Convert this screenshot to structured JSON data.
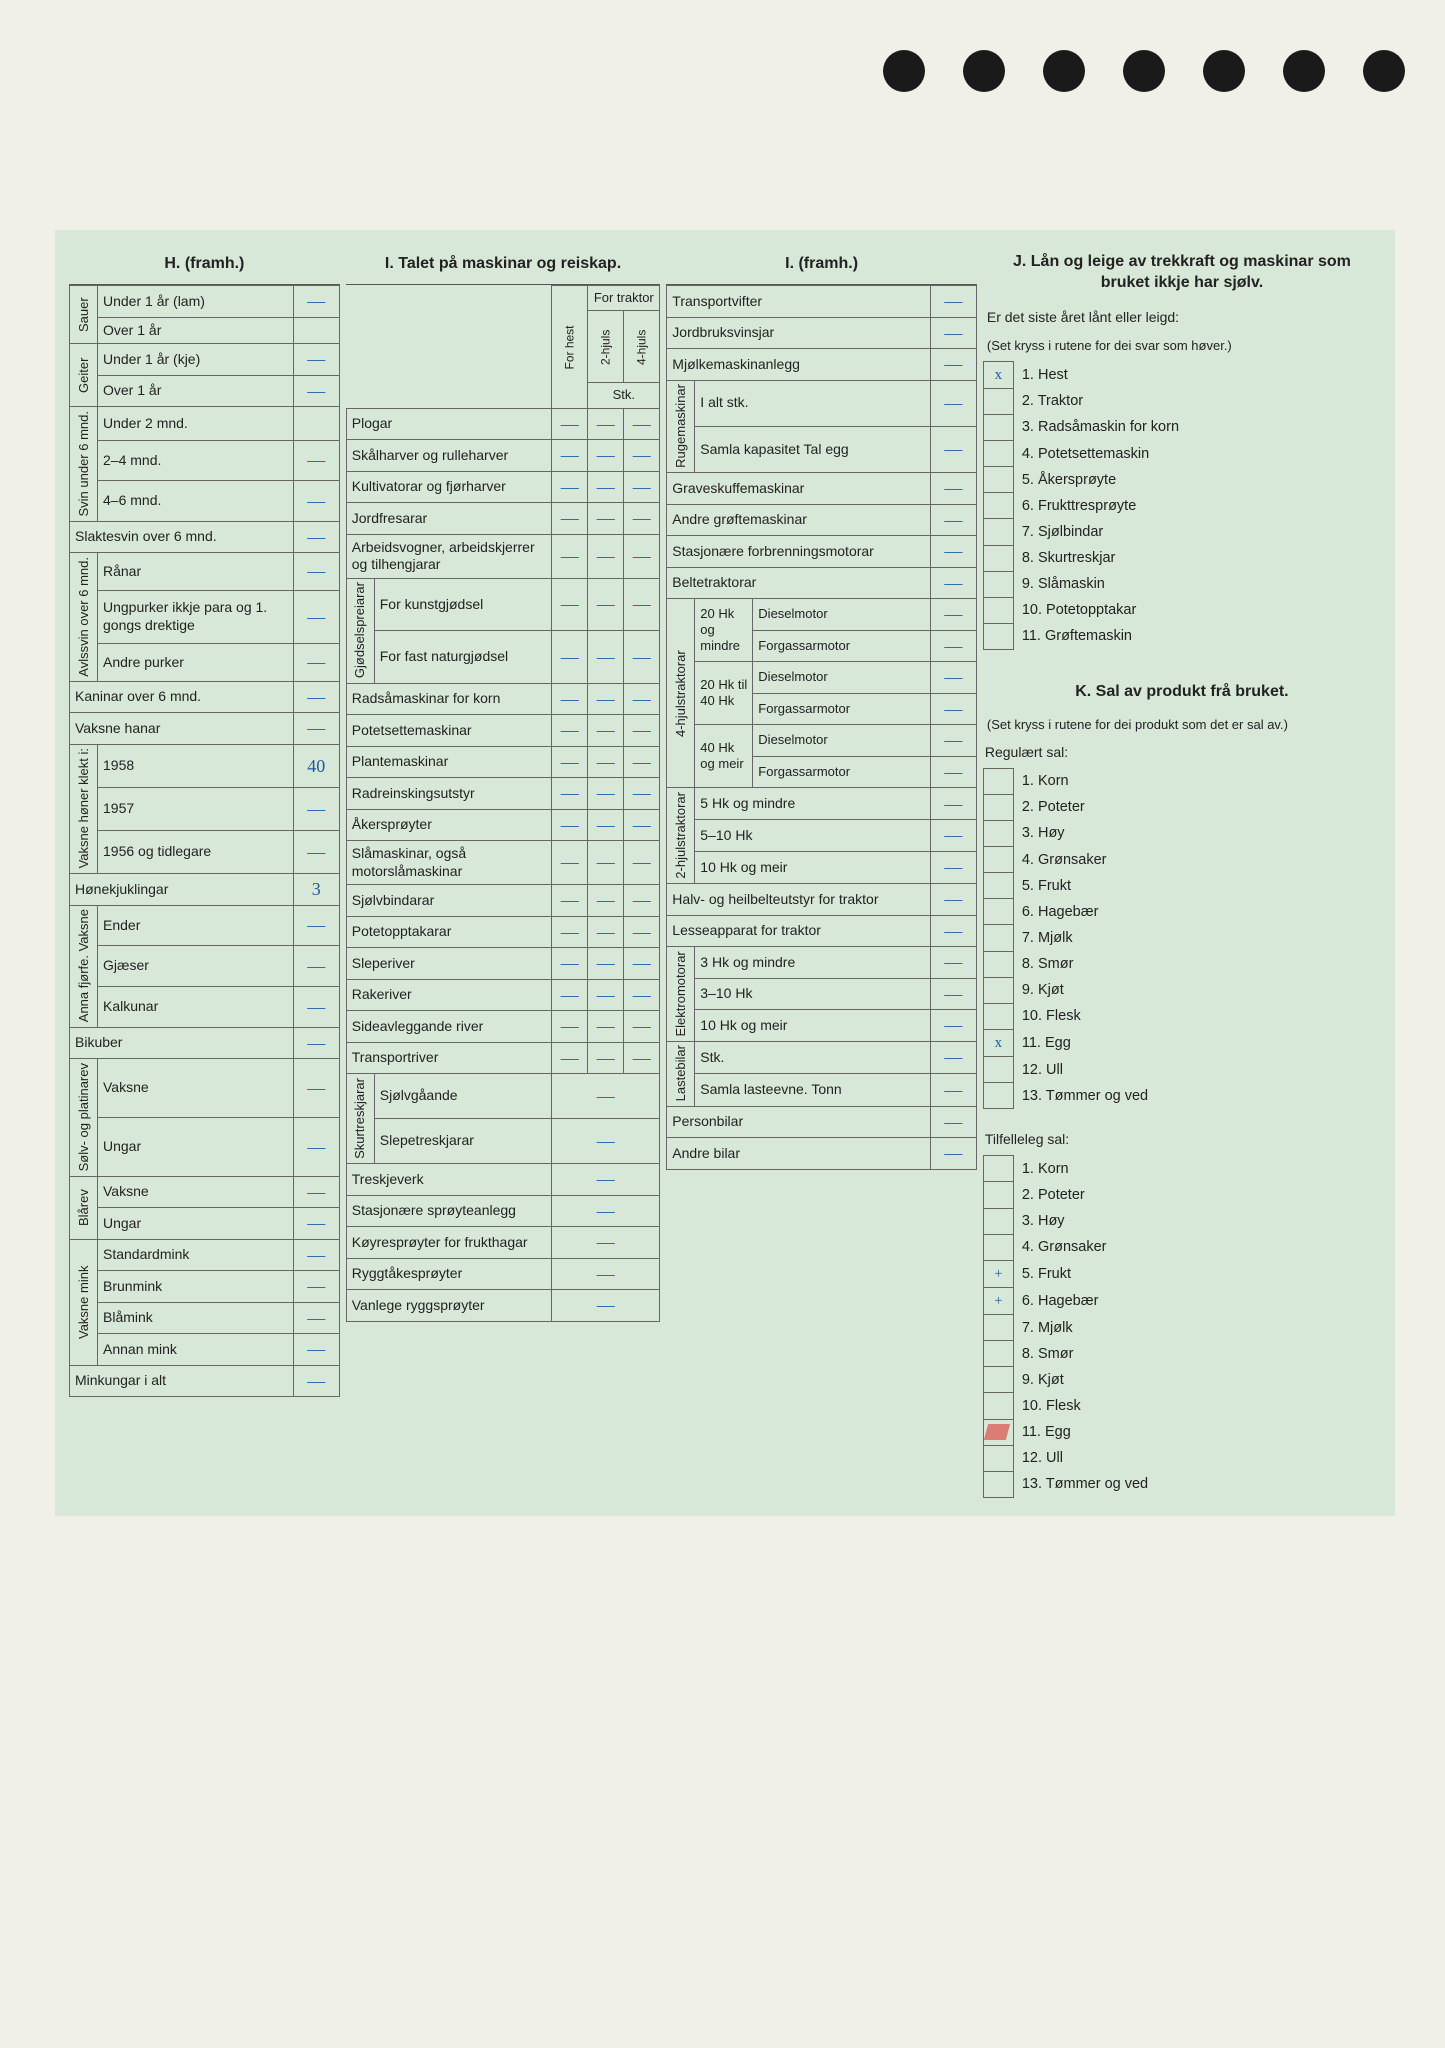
{
  "background_color": "#d8e8d8",
  "ink_color": "#1a5aa8",
  "text_color": "#222222",
  "border_color": "#666666",
  "red_mark_color": "#d33333",
  "titles": {
    "h": "H. (framh.)",
    "i1": "I. Talet på maskinar og reiskap.",
    "i2": "I. (framh.)",
    "j": "J. Lån og leige av trekkraft og maskinar som bruket ikkje har sjølv.",
    "j_sub": "Er det siste året lånt eller leigd:",
    "j_note": "(Set kryss i rutene for dei svar som høver.)",
    "k": "K. Sal av produkt frå bruket.",
    "k_note": "(Set kryss i rutene for dei produkt som det er sal av.)",
    "k_reg": "Regulært sal:",
    "k_tilf": "Tilfelleleg sal:"
  },
  "traktor_head": {
    "for_traktor": "For traktor",
    "for_hest": "For hest",
    "hjuls2": "2-hjuls",
    "hjuls4": "4-hjuls",
    "stk": "Stk."
  },
  "h_rows": [
    {
      "group": "Sauer",
      "label": "Under 1 år (lam)",
      "val": "—"
    },
    {
      "label": "Over 1 år",
      "val": ""
    },
    {
      "group": "Geiter",
      "label": "Under 1 år (kje)",
      "val": "—"
    },
    {
      "label": "Over 1 år",
      "val": "—"
    },
    {
      "group": "Svin under 6 mnd.",
      "label": "Under 2 mnd.",
      "val": ""
    },
    {
      "label": "2–4 mnd.",
      "val": "—"
    },
    {
      "label": "4–6 mnd.",
      "val": "—"
    },
    {
      "span": true,
      "label": "Slaktesvin over 6 mnd.",
      "val": "—"
    },
    {
      "group": "Avlssvin over 6 mnd.",
      "label": "Rånar",
      "val": "—"
    },
    {
      "label": "Ungpurker ikkje para og 1. gongs drektige",
      "val": "—"
    },
    {
      "label": "Andre purker",
      "val": "—"
    },
    {
      "span": true,
      "label": "Kaninar over 6 mnd.",
      "val": "—"
    },
    {
      "span": true,
      "label": "Vaksne hanar",
      "val": "—"
    },
    {
      "group": "Vaksne høner klekt i:",
      "label": "1958",
      "val": "40"
    },
    {
      "label": "1957",
      "val": "—"
    },
    {
      "label": "1956 og tidlegare",
      "val": "—"
    },
    {
      "span": true,
      "label": "Hønekjuklingar",
      "val": "3"
    },
    {
      "group": "Anna fjørfe. Vaksne",
      "label": "Ender",
      "val": "—"
    },
    {
      "label": "Gjæser",
      "val": "—"
    },
    {
      "label": "Kalkunar",
      "val": "—"
    },
    {
      "span": true,
      "label": "Bikuber",
      "val": "—"
    },
    {
      "group": "Sølv- og platinarev",
      "label": "Vaksne",
      "val": "—"
    },
    {
      "label": "Ungar",
      "val": "—"
    },
    {
      "group": "Blårev",
      "label": "Vaksne",
      "val": "—"
    },
    {
      "label": "Ungar",
      "val": "—"
    },
    {
      "group": "Vaksne mink",
      "label": "Standardmink",
      "val": "—"
    },
    {
      "label": "Brunmink",
      "val": "—"
    },
    {
      "label": "Blåmink",
      "val": "—"
    },
    {
      "label": "Annan mink",
      "val": "—"
    },
    {
      "span": true,
      "label": "Minkungar i alt",
      "val": "—"
    }
  ],
  "i1_rows": [
    "Plogar",
    "Skålharver og rulleharver",
    "Kultivatorar og fjørharver",
    "Jordfresarar",
    "Arbeidsvogner, arbeidskjerrer og tilhengjarar"
  ],
  "i1_gjod_group": "Gjødselspreiarar",
  "i1_gjod": [
    "For kunstgjødsel",
    "For fast naturgjødsel"
  ],
  "i1_rows2": [
    "Radsåmaskinar for korn",
    "Potetsettemaskinar",
    "Plantemaskinar",
    "Radreinskingsutstyr",
    "Åkersprøyter",
    "Slåmaskinar, også motorslåmaskinar",
    "Sjølvbindarar",
    "Potetopptakarar",
    "Sleperiver",
    "Rakeriver",
    "Sideavleggande river",
    "Transportriver"
  ],
  "i1_skur_group": "Skurtreskjarar",
  "i1_skur": [
    "Sjølvgåande",
    "Slepetreskjarar"
  ],
  "i1_rows3": [
    "Treskjeverk",
    "Stasjonære sprøyteanlegg",
    "Køyresprøyter for frukthagar",
    "Ryggtåkesprøyter",
    "Vanlege ryggsprøyter"
  ],
  "i2_top": [
    "Transportvifter",
    "Jordbruksvinsjar",
    "Mjølkemaskinanlegg"
  ],
  "i2_ruge_group": "Rugemaskinar",
  "i2_ruge": [
    "I alt stk.",
    "Samla kapasitet Tal egg"
  ],
  "i2_rows2": [
    "Graveskuffemaskinar",
    "Andre grøftemaskinar",
    "Stasjonære forbrenningsmotorar",
    "Beltetraktorar"
  ],
  "i2_4hjuls_group": "4-hjulstraktorar",
  "i2_4hjuls": [
    {
      "sub": "20 Hk og mindre",
      "r": [
        "Dieselmotor",
        "Forgassarmotor"
      ]
    },
    {
      "sub": "20 Hk til 40 Hk",
      "r": [
        "Dieselmotor",
        "Forgassarmotor"
      ]
    },
    {
      "sub": "40 Hk og meir",
      "r": [
        "Dieselmotor",
        "Forgassarmotor"
      ]
    }
  ],
  "i2_2hjuls_group": "2-hjulstraktorar",
  "i2_2hjuls": [
    "5 Hk og mindre",
    "5–10 Hk",
    "10 Hk og meir"
  ],
  "i2_rows3": [
    "Halv- og heilbelteutstyr for traktor",
    "Lesseapparat for traktor"
  ],
  "i2_elektro_group": "Elektromotorar",
  "i2_elektro": [
    "3 Hk og mindre",
    "3–10 Hk",
    "10 Hk og meir"
  ],
  "i2_laste_group": "Lastebilar",
  "i2_laste": [
    "Stk.",
    "Samla lasteevne. Tonn"
  ],
  "i2_rows4": [
    "Personbilar",
    "Andre bilar"
  ],
  "j_items": [
    {
      "n": "1.",
      "t": "Hest",
      "x": "x"
    },
    {
      "n": "2.",
      "t": "Traktor",
      "x": ""
    },
    {
      "n": "3.",
      "t": "Radsåmaskin for korn",
      "x": ""
    },
    {
      "n": "4.",
      "t": "Potetsettemaskin",
      "x": ""
    },
    {
      "n": "5.",
      "t": "Åkersprøyte",
      "x": ""
    },
    {
      "n": "6.",
      "t": "Frukttresprøyte",
      "x": ""
    },
    {
      "n": "7.",
      "t": "Sjølbindar",
      "x": ""
    },
    {
      "n": "8.",
      "t": "Skurtreskjar",
      "x": ""
    },
    {
      "n": "9.",
      "t": "Slåmaskin",
      "x": ""
    },
    {
      "n": "10.",
      "t": "Potetopptakar",
      "x": ""
    },
    {
      "n": "11.",
      "t": "Grøftemaskin",
      "x": ""
    }
  ],
  "k_reg_items": [
    {
      "n": "1.",
      "t": "Korn",
      "x": ""
    },
    {
      "n": "2.",
      "t": "Poteter",
      "x": ""
    },
    {
      "n": "3.",
      "t": "Høy",
      "x": ""
    },
    {
      "n": "4.",
      "t": "Grønsaker",
      "x": ""
    },
    {
      "n": "5.",
      "t": "Frukt",
      "x": ""
    },
    {
      "n": "6.",
      "t": "Hagebær",
      "x": ""
    },
    {
      "n": "7.",
      "t": "Mjølk",
      "x": ""
    },
    {
      "n": "8.",
      "t": "Smør",
      "x": ""
    },
    {
      "n": "9.",
      "t": "Kjøt",
      "x": ""
    },
    {
      "n": "10.",
      "t": "Flesk",
      "x": ""
    },
    {
      "n": "11.",
      "t": "Egg",
      "x": "x"
    },
    {
      "n": "12.",
      "t": "Ull",
      "x": ""
    },
    {
      "n": "13.",
      "t": "Tømmer og ved",
      "x": ""
    }
  ],
  "k_tilf_items": [
    {
      "n": "1.",
      "t": "Korn",
      "x": ""
    },
    {
      "n": "2.",
      "t": "Poteter",
      "x": ""
    },
    {
      "n": "3.",
      "t": "Høy",
      "x": ""
    },
    {
      "n": "4.",
      "t": "Grønsaker",
      "x": ""
    },
    {
      "n": "5.",
      "t": "Frukt",
      "x": "+"
    },
    {
      "n": "6.",
      "t": "Hagebær",
      "x": "+"
    },
    {
      "n": "7.",
      "t": "Mjølk",
      "x": ""
    },
    {
      "n": "8.",
      "t": "Smør",
      "x": ""
    },
    {
      "n": "9.",
      "t": "Kjøt",
      "x": ""
    },
    {
      "n": "10.",
      "t": "Flesk",
      "x": ""
    },
    {
      "n": "11.",
      "t": "Egg",
      "x": "",
      "red": true
    },
    {
      "n": "12.",
      "t": "Ull",
      "x": ""
    },
    {
      "n": "13.",
      "t": "Tømmer og ved",
      "x": ""
    }
  ]
}
